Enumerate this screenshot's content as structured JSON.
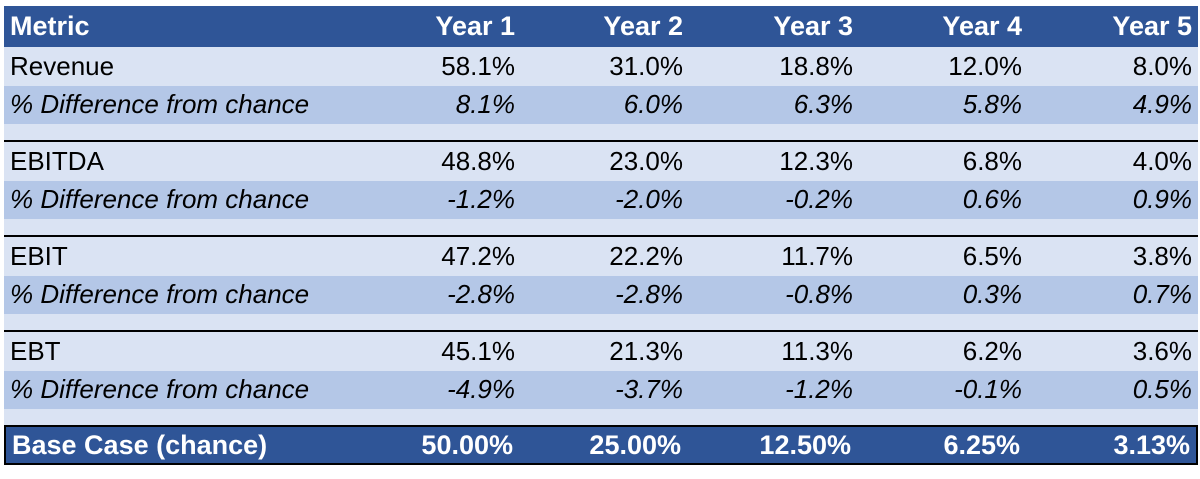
{
  "header": {
    "metric": "Metric",
    "years": [
      "Year 1",
      "Year 2",
      "Year 3",
      "Year 4",
      "Year 5"
    ]
  },
  "groups": [
    {
      "label": "Revenue",
      "values": [
        "58.1%",
        "31.0%",
        "18.8%",
        "12.0%",
        "8.0%"
      ],
      "diff_label": "% Difference from chance",
      "diff_values": [
        "8.1%",
        "6.0%",
        "6.3%",
        "5.8%",
        "4.9%"
      ]
    },
    {
      "label": "EBITDA",
      "values": [
        "48.8%",
        "23.0%",
        "12.3%",
        "6.8%",
        "4.0%"
      ],
      "diff_label": "% Difference from chance",
      "diff_values": [
        "-1.2%",
        "-2.0%",
        "-0.2%",
        "0.6%",
        "0.9%"
      ]
    },
    {
      "label": "EBIT",
      "values": [
        "47.2%",
        "22.2%",
        "11.7%",
        "6.5%",
        "3.8%"
      ],
      "diff_label": "% Difference from chance",
      "diff_values": [
        "-2.8%",
        "-2.8%",
        "-0.8%",
        "0.3%",
        "0.7%"
      ]
    },
    {
      "label": "EBT",
      "values": [
        "45.1%",
        "21.3%",
        "11.3%",
        "6.2%",
        "3.6%"
      ],
      "diff_label": "% Difference from chance",
      "diff_values": [
        "-4.9%",
        "-3.7%",
        "-1.2%",
        "-0.1%",
        "0.5%"
      ]
    }
  ],
  "base_case": {
    "label": "Base Case (chance)",
    "values": [
      "50.00%",
      "25.00%",
      "12.50%",
      "6.25%",
      "3.13%"
    ]
  },
  "colors": {
    "header_bg": "#2f5597",
    "row_light": "#dae3f3",
    "row_mid": "#b4c7e7",
    "text_on_header": "#ffffff"
  }
}
